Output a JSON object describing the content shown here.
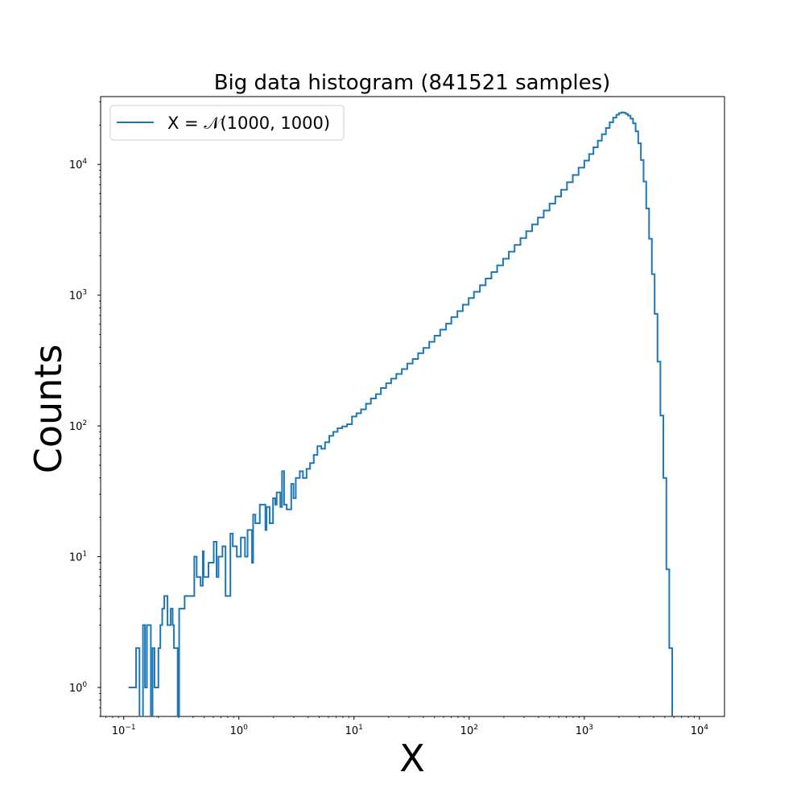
{
  "chart_data": {
    "type": "histogram",
    "title": "Big data histogram (841521 samples)",
    "xlabel": "X",
    "ylabel": "Counts",
    "xscale": "log",
    "yscale": "log",
    "xlim": [
      0.063,
      16500
    ],
    "ylim": [
      0.6,
      33000
    ],
    "grid": false,
    "legend_position": "top-left",
    "color": "#1f77b4",
    "x_ticks": [
      {
        "base": "10",
        "exp": "−1",
        "value": 0.1
      },
      {
        "base": "10",
        "exp": "0",
        "value": 1
      },
      {
        "base": "10",
        "exp": "1",
        "value": 10
      },
      {
        "base": "10",
        "exp": "2",
        "value": 100
      },
      {
        "base": "10",
        "exp": "3",
        "value": 1000
      },
      {
        "base": "10",
        "exp": "4",
        "value": 10000
      }
    ],
    "y_ticks": [
      {
        "base": "10",
        "exp": "0",
        "value": 1
      },
      {
        "base": "10",
        "exp": "1",
        "value": 10
      },
      {
        "base": "10",
        "exp": "2",
        "value": 100
      },
      {
        "base": "10",
        "exp": "3",
        "value": 1000
      },
      {
        "base": "10",
        "exp": "4",
        "value": 10000
      }
    ],
    "series": [
      {
        "name": "X = 𝒩(1000, 1000)",
        "bins": [
          [
            0.11,
            1
          ],
          [
            0.128,
            2
          ],
          [
            0.137,
            0
          ],
          [
            0.147,
            3
          ],
          [
            0.153,
            1
          ],
          [
            0.159,
            3
          ],
          [
            0.172,
            0
          ],
          [
            0.178,
            2
          ],
          [
            0.185,
            1
          ],
          [
            0.2,
            2
          ],
          [
            0.208,
            3
          ],
          [
            0.216,
            4
          ],
          [
            0.225,
            5
          ],
          [
            0.24,
            3
          ],
          [
            0.256,
            4
          ],
          [
            0.266,
            3
          ],
          [
            0.273,
            2
          ],
          [
            0.294,
            0
          ],
          [
            0.303,
            4
          ],
          [
            0.325,
            4
          ],
          [
            0.338,
            5
          ],
          [
            0.365,
            5
          ],
          [
            0.41,
            10
          ],
          [
            0.43,
            7
          ],
          [
            0.465,
            6
          ],
          [
            0.486,
            11
          ],
          [
            0.495,
            7
          ],
          [
            0.545,
            9
          ],
          [
            0.605,
            13
          ],
          [
            0.64,
            7
          ],
          [
            0.665,
            10
          ],
          [
            0.72,
            12
          ],
          [
            0.766,
            5
          ],
          [
            0.844,
            15
          ],
          [
            0.885,
            12
          ],
          [
            0.96,
            10
          ],
          [
            1.04,
            14
          ],
          [
            1.13,
            10
          ],
          [
            1.19,
            16
          ],
          [
            1.3,
            9
          ],
          [
            1.33,
            21
          ],
          [
            1.39,
            18
          ],
          [
            1.52,
            25
          ],
          [
            1.7,
            16
          ],
          [
            1.74,
            24
          ],
          [
            1.85,
            18
          ],
          [
            1.98,
            28
          ],
          [
            2.07,
            25
          ],
          [
            2.13,
            31
          ],
          [
            2.29,
            24
          ],
          [
            2.37,
            45
          ],
          [
            2.47,
            25
          ],
          [
            2.6,
            23
          ],
          [
            2.85,
            36
          ],
          [
            2.98,
            28
          ],
          [
            3.12,
            40
          ],
          [
            3.38,
            45
          ],
          [
            3.6,
            40
          ],
          [
            3.87,
            47
          ],
          [
            4.15,
            52
          ],
          [
            4.47,
            60
          ],
          [
            4.81,
            70
          ],
          [
            5.2,
            67
          ],
          [
            5.6,
            75
          ],
          [
            6.1,
            84
          ],
          [
            6.6,
            90
          ],
          [
            7.2,
            96
          ],
          [
            7.9,
            99
          ],
          [
            8.7,
            103
          ],
          [
            9.6,
            118
          ],
          [
            10.5,
            125
          ],
          [
            11.5,
            134
          ],
          [
            12.7,
            148
          ],
          [
            14.0,
            162
          ],
          [
            15.5,
            175
          ],
          [
            17.1,
            195
          ],
          [
            19.0,
            212
          ],
          [
            21.0,
            230
          ],
          [
            23.3,
            250
          ],
          [
            26.0,
            272
          ],
          [
            29.0,
            300
          ],
          [
            32.3,
            325
          ],
          [
            36.0,
            360
          ],
          [
            40.0,
            395
          ],
          [
            45.0,
            440
          ],
          [
            50.0,
            490
          ],
          [
            56.0,
            545
          ],
          [
            63.0,
            605
          ],
          [
            70.0,
            680
          ],
          [
            79.0,
            755
          ],
          [
            88.0,
            845
          ],
          [
            99.0,
            950
          ],
          [
            110,
            1060
          ],
          [
            124,
            1190
          ],
          [
            139,
            1340
          ],
          [
            156,
            1500
          ],
          [
            175,
            1690
          ],
          [
            197,
            1900
          ],
          [
            221,
            2150
          ],
          [
            248,
            2420
          ],
          [
            279,
            2730
          ],
          [
            313,
            3080
          ],
          [
            352,
            3480
          ],
          [
            395,
            3920
          ],
          [
            444,
            4440
          ],
          [
            499,
            5020
          ],
          [
            560,
            5680
          ],
          [
            629,
            6400
          ],
          [
            707,
            7300
          ],
          [
            794,
            8300
          ],
          [
            891,
            9450
          ],
          [
            1000,
            10700
          ],
          [
            1100,
            12000
          ],
          [
            1200,
            13500
          ],
          [
            1310,
            15200
          ],
          [
            1420,
            17000
          ],
          [
            1540,
            19000
          ],
          [
            1660,
            21000
          ],
          [
            1780,
            22800
          ],
          [
            1900,
            24000
          ],
          [
            2000,
            24700
          ],
          [
            2100,
            25000
          ],
          [
            2200,
            24800
          ],
          [
            2300,
            24300
          ],
          [
            2400,
            23600
          ],
          [
            2520,
            22400
          ],
          [
            2650,
            20600
          ],
          [
            2790,
            17900
          ],
          [
            2940,
            14500
          ],
          [
            3100,
            10800
          ],
          [
            3270,
            7400
          ],
          [
            3450,
            4600
          ],
          [
            3650,
            2700
          ],
          [
            3860,
            1450
          ],
          [
            4080,
            720
          ],
          [
            4320,
            310
          ],
          [
            4580,
            120
          ],
          [
            4860,
            40
          ],
          [
            5160,
            8
          ],
          [
            5470,
            2
          ],
          [
            5800,
            0
          ]
        ],
        "last_edge": 6100
      }
    ]
  }
}
